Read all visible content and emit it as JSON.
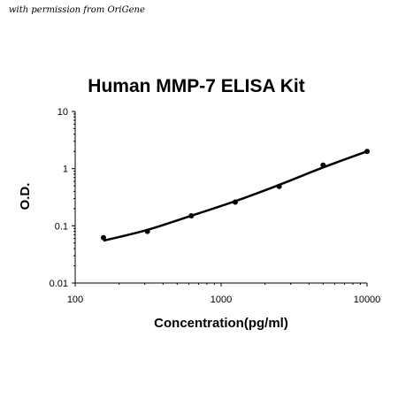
{
  "credit": "with permission from OriGene",
  "chart_data": {
    "type": "scatter",
    "title": "Human MMP-7 ELISA Kit",
    "xlabel": "Concentration(pg/ml)",
    "ylabel": "O.D.",
    "x_scale": "log",
    "y_scale": "log",
    "xlim": [
      100,
      10000
    ],
    "ylim": [
      0.01,
      10
    ],
    "x_ticks": [
      "100",
      "1000",
      "10000"
    ],
    "y_ticks": [
      "0.01",
      "0.1",
      "1",
      "10"
    ],
    "grid": false,
    "legend": "none",
    "series": [
      {
        "points": [
          {
            "x": 156.25,
            "y": 0.062
          },
          {
            "x": 312.5,
            "y": 0.08
          },
          {
            "x": 625,
            "y": 0.15
          },
          {
            "x": 1250,
            "y": 0.26
          },
          {
            "x": 2500,
            "y": 0.49
          },
          {
            "x": 5000,
            "y": 1.15
          },
          {
            "x": 10000,
            "y": 2.0
          }
        ]
      }
    ],
    "fit_curve": [
      {
        "x": 156.25,
        "y": 0.055
      },
      {
        "x": 312.5,
        "y": 0.085
      },
      {
        "x": 625,
        "y": 0.15
      },
      {
        "x": 1250,
        "y": 0.27
      },
      {
        "x": 2500,
        "y": 0.52
      },
      {
        "x": 5000,
        "y": 1.05
      },
      {
        "x": 10000,
        "y": 2.0
      }
    ],
    "colors": {
      "points": "#000000",
      "curve": "#000000",
      "axis": "#000000"
    }
  }
}
